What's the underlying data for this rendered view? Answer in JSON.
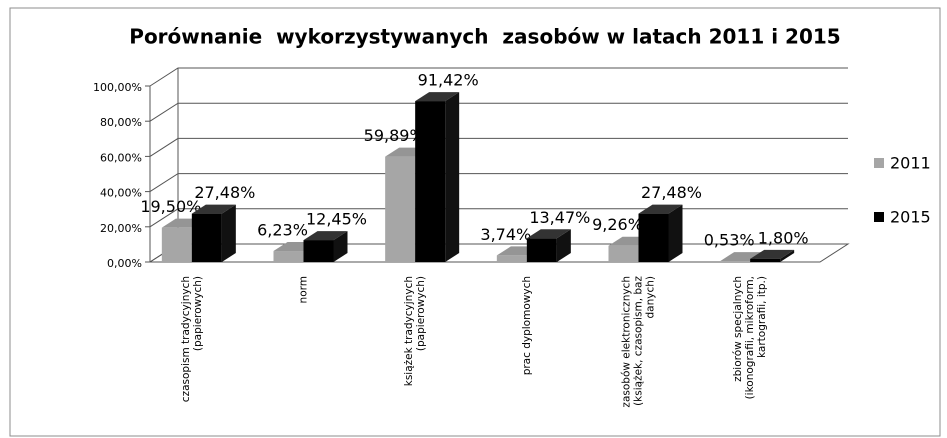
{
  "chart_data": {
    "type": "bar3d",
    "title": "Porównanie  wykorzystywanych  zasobów w latach 2011 i 2015",
    "categories": [
      [
        "czasopism tradycyjnych",
        "(papierowych)"
      ],
      [
        "norm"
      ],
      [
        "książek tradycyjnych",
        "(papierowych)"
      ],
      [
        "prac dyplomowych"
      ],
      [
        "zasobów elektronicznych",
        "(książek, czasopism, baz",
        "danych)"
      ],
      [
        "zbiorów specjalnych",
        "(ikonografii, mikroform,",
        "kartografii, itp.)"
      ]
    ],
    "series": [
      {
        "name": "2011",
        "color": "#a6a6a6",
        "values": [
          19.5,
          6.23,
          59.89,
          3.74,
          9.26,
          0.53
        ],
        "value_labels": [
          "19,50%",
          "6,23%",
          "59,89%",
          "3,74%",
          "9,26%",
          "0,53%"
        ]
      },
      {
        "name": "2015",
        "color": "#000000",
        "values": [
          27.48,
          12.45,
          91.42,
          13.47,
          27.48,
          1.8
        ],
        "value_labels": [
          "27,48%",
          "12,45%",
          "91,42%",
          "13,47%",
          "27,48%",
          "1,80%"
        ]
      }
    ],
    "ylim": [
      0,
      100
    ],
    "yticks": [
      {
        "value": 0,
        "label": "0,00%"
      },
      {
        "value": 20,
        "label": "20,00%"
      },
      {
        "value": 40,
        "label": "40,00%"
      },
      {
        "value": 60,
        "label": "60,00%"
      },
      {
        "value": 80,
        "label": "80,00%"
      },
      {
        "value": 100,
        "label": "100,00%"
      }
    ],
    "grid": true,
    "legend": "right"
  }
}
